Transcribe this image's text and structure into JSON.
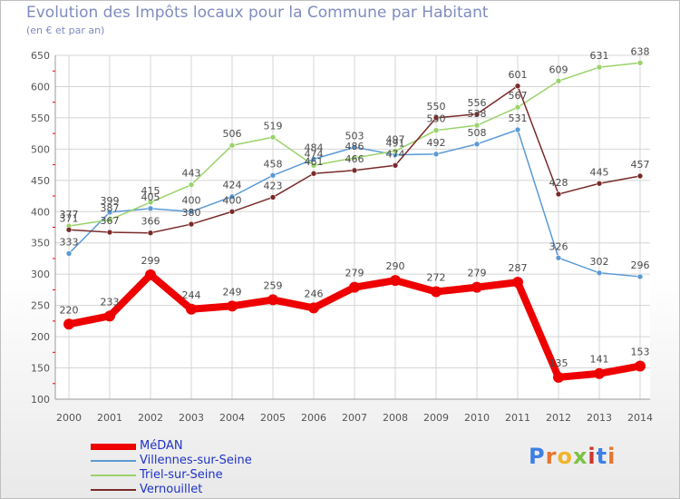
{
  "title": "Evolution des Impôts locaux pour la Commune par Habitant",
  "subtitle": "(en € et par an)",
  "logo": {
    "text": "Proxiti",
    "letter_colors": [
      "#3e7fe6",
      "#e8742c",
      "#f2b52a",
      "#7bc243",
      "#d2342e",
      "#3e7fe6",
      "#e8742c"
    ]
  },
  "chart_data": {
    "type": "line",
    "x": [
      "2000",
      "2001",
      "2002",
      "2003",
      "2004",
      "2005",
      "2006",
      "2007",
      "2008",
      "2009",
      "2010",
      "2011",
      "2012",
      "2013",
      "2014"
    ],
    "ylim": [
      100,
      650
    ],
    "yticks": [
      100,
      150,
      200,
      250,
      300,
      350,
      400,
      450,
      500,
      550,
      600,
      650
    ],
    "grid": true,
    "legend_position": "bottom-left",
    "series": [
      {
        "name": "MéDAN",
        "color": "#ee0000",
        "width": 8,
        "values": [
          220,
          233,
          299,
          244,
          249,
          259,
          246,
          279,
          290,
          272,
          279,
          287,
          135,
          141,
          153
        ]
      },
      {
        "name": "Villennes-sur-Seine",
        "color": "#5b9ad5",
        "width": 1.5,
        "values": [
          333,
          399,
          405,
          400,
          424,
          458,
          484,
          503,
          491,
          492,
          508,
          531,
          326,
          302,
          296
        ]
      },
      {
        "name": "Triel-sur-Seine",
        "color": "#9ad36a",
        "width": 1.5,
        "values": [
          377,
          387,
          415,
          443,
          506,
          519,
          474,
          486,
          497,
          530,
          538,
          567,
          609,
          631,
          638
        ]
      },
      {
        "name": "Vernouillet",
        "color": "#7a2a2a",
        "width": 1.5,
        "values": [
          371,
          367,
          366,
          380,
          400,
          423,
          461,
          466,
          474,
          550,
          556,
          601,
          428,
          445,
          457
        ]
      }
    ]
  }
}
